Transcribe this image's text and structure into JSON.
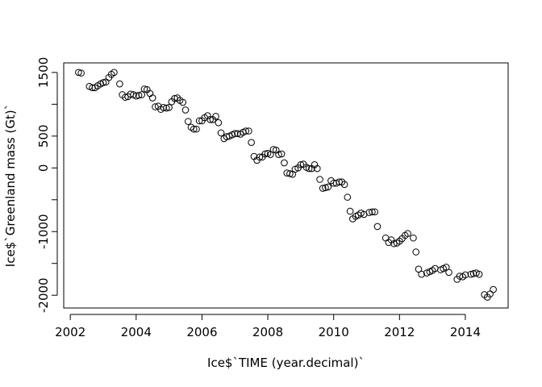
{
  "chart_data": {
    "type": "scatter",
    "title": "",
    "xlabel": "Ice$`TIME (year.decimal)`",
    "ylabel": "Ice$`Greenland mass (Gt)`",
    "xlim": [
      2001.8,
      2015.3
    ],
    "ylim": [
      -2200,
      1650
    ],
    "xticks": [
      2002,
      2004,
      2006,
      2008,
      2010,
      2012,
      2014
    ],
    "xtick_labels": [
      "2002",
      "2004",
      "2006",
      "2008",
      "2010",
      "2012",
      "2014"
    ],
    "yticks": [
      -2000,
      -1500,
      -1000,
      -500,
      0,
      500,
      1000,
      1500
    ],
    "ytick_labels": [
      "-2000",
      "",
      "-1000",
      "",
      "0",
      "500",
      "",
      "1500"
    ],
    "marker": "open-circle",
    "marker_color": "#000000",
    "grid": false,
    "legend": "none",
    "x": [
      2002.25,
      2002.33,
      2002.58,
      2002.67,
      2002.75,
      2002.83,
      2002.92,
      2003.0,
      2003.08,
      2003.17,
      2003.25,
      2003.33,
      2003.5,
      2003.58,
      2003.67,
      2003.75,
      2003.83,
      2003.92,
      2004.0,
      2004.08,
      2004.17,
      2004.25,
      2004.33,
      2004.42,
      2004.5,
      2004.58,
      2004.67,
      2004.75,
      2004.83,
      2004.92,
      2005.0,
      2005.08,
      2005.17,
      2005.25,
      2005.33,
      2005.42,
      2005.5,
      2005.58,
      2005.67,
      2005.75,
      2005.83,
      2005.92,
      2006.0,
      2006.08,
      2006.17,
      2006.25,
      2006.33,
      2006.42,
      2006.5,
      2006.58,
      2006.67,
      2006.75,
      2006.83,
      2006.92,
      2007.0,
      2007.08,
      2007.17,
      2007.25,
      2007.33,
      2007.42,
      2007.5,
      2007.58,
      2007.67,
      2007.75,
      2007.83,
      2007.92,
      2008.0,
      2008.08,
      2008.17,
      2008.25,
      2008.33,
      2008.42,
      2008.5,
      2008.58,
      2008.67,
      2008.75,
      2008.83,
      2008.92,
      2009.0,
      2009.08,
      2009.17,
      2009.25,
      2009.33,
      2009.42,
      2009.5,
      2009.58,
      2009.67,
      2009.75,
      2009.83,
      2009.92,
      2010.0,
      2010.08,
      2010.17,
      2010.25,
      2010.33,
      2010.42,
      2010.5,
      2010.58,
      2010.67,
      2010.75,
      2010.83,
      2010.92,
      2011.08,
      2011.17,
      2011.25,
      2011.33,
      2011.58,
      2011.67,
      2011.75,
      2011.83,
      2011.92,
      2012.0,
      2012.08,
      2012.17,
      2012.25,
      2012.42,
      2012.5,
      2012.58,
      2012.67,
      2012.83,
      2012.92,
      2013.0,
      2013.08,
      2013.25,
      2013.33,
      2013.42,
      2013.5,
      2013.75,
      2013.83,
      2013.92,
      2014.0,
      2014.17,
      2014.25,
      2014.33,
      2014.42,
      2014.58,
      2014.67,
      2014.75,
      2014.85
    ],
    "y": [
      1500,
      1490,
      1280,
      1260,
      1260,
      1290,
      1320,
      1340,
      1350,
      1420,
      1470,
      1500,
      1320,
      1150,
      1110,
      1120,
      1160,
      1150,
      1130,
      1140,
      1150,
      1240,
      1230,
      1170,
      1100,
      960,
      970,
      920,
      950,
      940,
      950,
      1040,
      1090,
      1100,
      1060,
      1030,
      910,
      730,
      640,
      610,
      610,
      740,
      740,
      790,
      820,
      760,
      760,
      810,
      710,
      550,
      460,
      490,
      500,
      520,
      540,
      540,
      530,
      560,
      580,
      580,
      400,
      180,
      120,
      170,
      170,
      220,
      230,
      210,
      290,
      280,
      210,
      220,
      80,
      -80,
      -90,
      -100,
      -20,
      0,
      50,
      60,
      10,
      -10,
      -10,
      50,
      -10,
      -180,
      -320,
      -310,
      -300,
      -200,
      -240,
      -240,
      -220,
      -220,
      -260,
      -460,
      -680,
      -800,
      -760,
      -740,
      -710,
      -730,
      -700,
      -690,
      -690,
      -920,
      -1100,
      -1170,
      -1130,
      -1190,
      -1180,
      -1150,
      -1110,
      -1060,
      -1030,
      -1100,
      -1320,
      -1590,
      -1670,
      -1650,
      -1630,
      -1610,
      -1580,
      -1600,
      -1580,
      -1560,
      -1640,
      -1750,
      -1700,
      -1710,
      -1680,
      -1670,
      -1660,
      -1650,
      -1670,
      -1990,
      -2030,
      -1980,
      -1910
    ]
  }
}
